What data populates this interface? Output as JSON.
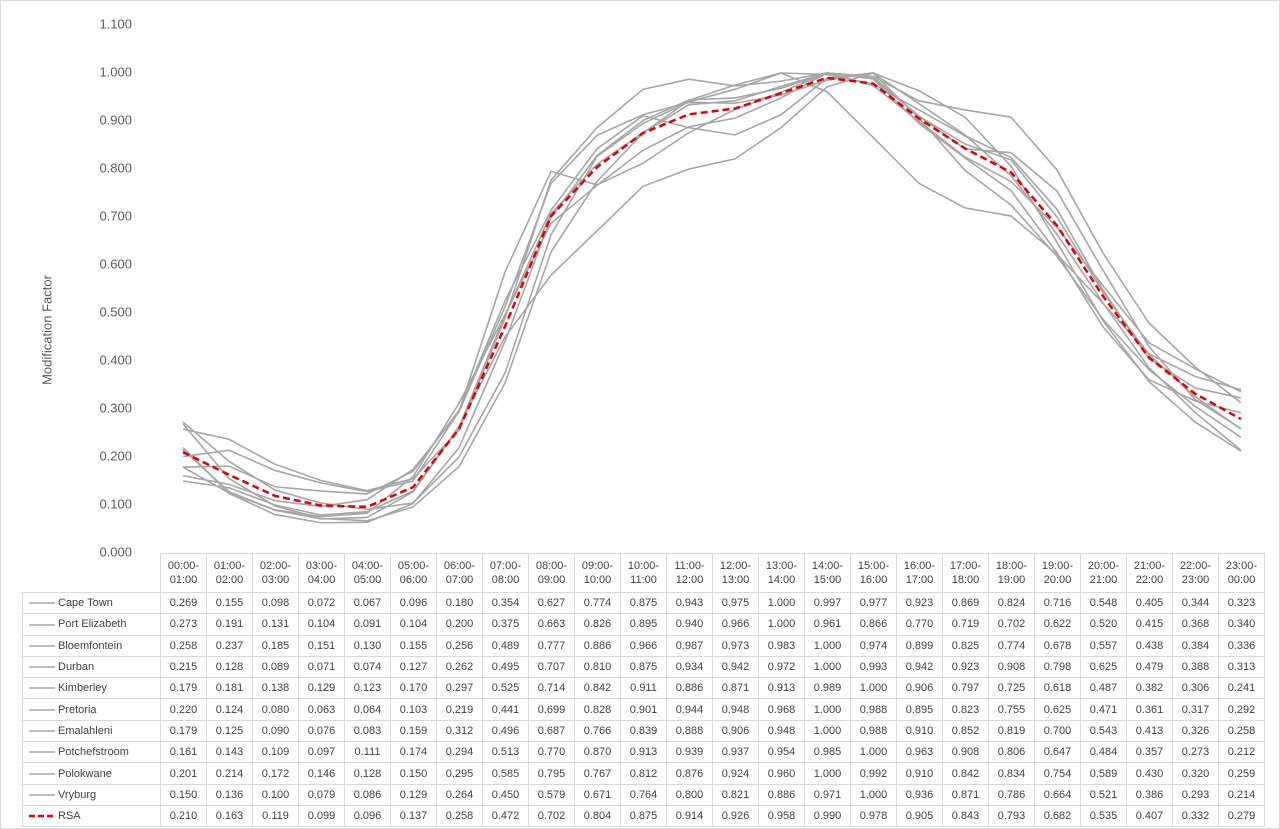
{
  "chart_data": {
    "type": "line",
    "y_label": "Modification Factor",
    "categories": [
      "00:00-01:00",
      "01:00-02:00",
      "02:00-03:00",
      "03:00-04:00",
      "04:00-05:00",
      "05:00-06:00",
      "06:00-07:00",
      "07:00-08:00",
      "08:00-09:00",
      "09:00-10:00",
      "10:00-11:00",
      "11:00-12:00",
      "12:00-13:00",
      "13:00-14:00",
      "14:00-15:00",
      "15:00-16:00",
      "16:00-17:00",
      "17:00-18:00",
      "18:00-19:00",
      "19:00-20:00",
      "20:00-21:00",
      "21:00-22:00",
      "22:00-23:00",
      "23:00-00:00"
    ],
    "ylim": [
      0,
      1.1
    ],
    "yticks": [
      {
        "value": 0,
        "label": "0.000"
      },
      {
        "value": 0.1,
        "label": "0.100"
      },
      {
        "value": 0.2,
        "label": "0.200"
      },
      {
        "value": 0.3,
        "label": "0.300"
      },
      {
        "value": 0.4,
        "label": "0.400"
      },
      {
        "value": 0.5,
        "label": "0.500"
      },
      {
        "value": 0.6,
        "label": "0.600"
      },
      {
        "value": 0.7,
        "label": "0.700"
      },
      {
        "value": 0.8,
        "label": "0.800"
      },
      {
        "value": 0.9,
        "label": "0.900"
      },
      {
        "value": 1,
        "label": "1.000"
      },
      {
        "value": 1.1,
        "label": "1.100"
      }
    ],
    "grid": false,
    "series": [
      {
        "name": "Cape Town",
        "color": "#a6a6a6",
        "dashed": false,
        "values": [
          0.269,
          0.155,
          0.098,
          0.072,
          0.067,
          0.096,
          0.18,
          0.354,
          0.627,
          0.774,
          0.875,
          0.943,
          0.975,
          1.0,
          0.997,
          0.977,
          0.923,
          0.869,
          0.824,
          0.716,
          0.548,
          0.405,
          0.344,
          0.323
        ],
        "value_labels": [
          "0.269",
          "0.155",
          "0.098",
          "0.072",
          "0.067",
          "0.096",
          "0.180",
          "0.354",
          "0.627",
          "0.774",
          "0.875",
          "0.943",
          "0.975",
          "1.000",
          "0.997",
          "0.977",
          "0.923",
          "0.869",
          "0.824",
          "0.716",
          "0.548",
          "0.405",
          "0.344",
          "0.323"
        ]
      },
      {
        "name": "Port Elizabeth",
        "color": "#a6a6a6",
        "dashed": false,
        "values": [
          0.273,
          0.191,
          0.131,
          0.104,
          0.091,
          0.104,
          0.2,
          0.375,
          0.663,
          0.826,
          0.895,
          0.94,
          0.966,
          1.0,
          0.961,
          0.866,
          0.77,
          0.719,
          0.702,
          0.622,
          0.52,
          0.415,
          0.368,
          0.34
        ],
        "value_labels": [
          "0.273",
          "0.191",
          "0.131",
          "0.104",
          "0.091",
          "0.104",
          "0.200",
          "0.375",
          "0.663",
          "0.826",
          "0.895",
          "0.940",
          "0.966",
          "1.000",
          "0.961",
          "0.866",
          "0.770",
          "0.719",
          "0.702",
          "0.622",
          "0.520",
          "0.415",
          "0.368",
          "0.340"
        ]
      },
      {
        "name": "Bloemfontein",
        "color": "#a6a6a6",
        "dashed": false,
        "values": [
          0.258,
          0.237,
          0.185,
          0.151,
          0.13,
          0.155,
          0.256,
          0.489,
          0.777,
          0.886,
          0.966,
          0.987,
          0.973,
          0.983,
          1.0,
          0.974,
          0.899,
          0.825,
          0.774,
          0.678,
          0.557,
          0.438,
          0.384,
          0.336
        ],
        "value_labels": [
          "0.258",
          "0.237",
          "0.185",
          "0.151",
          "0.130",
          "0.155",
          "0.256",
          "0.489",
          "0.777",
          "0.886",
          "0.966",
          "0.987",
          "0.973",
          "0.983",
          "1.000",
          "0.974",
          "0.899",
          "0.825",
          "0.774",
          "0.678",
          "0.557",
          "0.438",
          "0.384",
          "0.336"
        ]
      },
      {
        "name": "Durban",
        "color": "#a6a6a6",
        "dashed": false,
        "values": [
          0.215,
          0.128,
          0.089,
          0.071,
          0.074,
          0.127,
          0.262,
          0.495,
          0.707,
          0.81,
          0.875,
          0.934,
          0.942,
          0.972,
          1.0,
          0.993,
          0.942,
          0.923,
          0.908,
          0.798,
          0.625,
          0.479,
          0.388,
          0.313
        ],
        "value_labels": [
          "0.215",
          "0.128",
          "0.089",
          "0.071",
          "0.074",
          "0.127",
          "0.262",
          "0.495",
          "0.707",
          "0.810",
          "0.875",
          "0.934",
          "0.942",
          "0.972",
          "1.000",
          "0.993",
          "0.942",
          "0.923",
          "0.908",
          "0.798",
          "0.625",
          "0.479",
          "0.388",
          "0.313"
        ]
      },
      {
        "name": "Kimberley",
        "color": "#a6a6a6",
        "dashed": false,
        "values": [
          0.179,
          0.181,
          0.138,
          0.129,
          0.123,
          0.17,
          0.297,
          0.525,
          0.714,
          0.842,
          0.911,
          0.886,
          0.871,
          0.913,
          0.989,
          1.0,
          0.906,
          0.797,
          0.725,
          0.618,
          0.487,
          0.382,
          0.306,
          0.241
        ],
        "value_labels": [
          "0.179",
          "0.181",
          "0.138",
          "0.129",
          "0.123",
          "0.170",
          "0.297",
          "0.525",
          "0.714",
          "0.842",
          "0.911",
          "0.886",
          "0.871",
          "0.913",
          "0.989",
          "1.000",
          "0.906",
          "0.797",
          "0.725",
          "0.618",
          "0.487",
          "0.382",
          "0.306",
          "0.241"
        ]
      },
      {
        "name": "Pretoria",
        "color": "#a6a6a6",
        "dashed": false,
        "values": [
          0.22,
          0.124,
          0.08,
          0.063,
          0.064,
          0.103,
          0.219,
          0.441,
          0.699,
          0.828,
          0.901,
          0.944,
          0.948,
          0.968,
          1.0,
          0.988,
          0.895,
          0.823,
          0.755,
          0.625,
          0.471,
          0.361,
          0.317,
          0.292
        ],
        "value_labels": [
          "0.220",
          "0.124",
          "0.080",
          "0.063",
          "0.064",
          "0.103",
          "0.219",
          "0.441",
          "0.699",
          "0.828",
          "0.901",
          "0.944",
          "0.948",
          "0.968",
          "1.000",
          "0.988",
          "0.895",
          "0.823",
          "0.755",
          "0.625",
          "0.471",
          "0.361",
          "0.317",
          "0.292"
        ]
      },
      {
        "name": "Emalahleni",
        "color": "#a6a6a6",
        "dashed": false,
        "values": [
          0.179,
          0.125,
          0.09,
          0.076,
          0.083,
          0.159,
          0.312,
          0.496,
          0.687,
          0.766,
          0.839,
          0.888,
          0.906,
          0.948,
          1.0,
          0.988,
          0.91,
          0.852,
          0.819,
          0.7,
          0.543,
          0.413,
          0.326,
          0.258
        ],
        "value_labels": [
          "0.179",
          "0.125",
          "0.090",
          "0.076",
          "0.083",
          "0.159",
          "0.312",
          "0.496",
          "0.687",
          "0.766",
          "0.839",
          "0.888",
          "0.906",
          "0.948",
          "1.000",
          "0.988",
          "0.910",
          "0.852",
          "0.819",
          "0.700",
          "0.543",
          "0.413",
          "0.326",
          "0.258"
        ]
      },
      {
        "name": "Potchefstroom",
        "color": "#a6a6a6",
        "dashed": false,
        "values": [
          0.161,
          0.143,
          0.109,
          0.097,
          0.111,
          0.174,
          0.294,
          0.513,
          0.77,
          0.87,
          0.913,
          0.939,
          0.937,
          0.954,
          0.985,
          1.0,
          0.963,
          0.908,
          0.806,
          0.647,
          0.484,
          0.357,
          0.273,
          0.212
        ],
        "value_labels": [
          "0.161",
          "0.143",
          "0.109",
          "0.097",
          "0.111",
          "0.174",
          "0.294",
          "0.513",
          "0.770",
          "0.870",
          "0.913",
          "0.939",
          "0.937",
          "0.954",
          "0.985",
          "1.000",
          "0.963",
          "0.908",
          "0.806",
          "0.647",
          "0.484",
          "0.357",
          "0.273",
          "0.212"
        ]
      },
      {
        "name": "Polokwane",
        "color": "#a6a6a6",
        "dashed": false,
        "values": [
          0.201,
          0.214,
          0.172,
          0.146,
          0.128,
          0.15,
          0.295,
          0.585,
          0.795,
          0.767,
          0.812,
          0.876,
          0.924,
          0.96,
          1.0,
          0.992,
          0.91,
          0.842,
          0.834,
          0.754,
          0.589,
          0.43,
          0.32,
          0.259
        ],
        "value_labels": [
          "0.201",
          "0.214",
          "0.172",
          "0.146",
          "0.128",
          "0.150",
          "0.295",
          "0.585",
          "0.795",
          "0.767",
          "0.812",
          "0.876",
          "0.924",
          "0.960",
          "1.000",
          "0.992",
          "0.910",
          "0.842",
          "0.834",
          "0.754",
          "0.589",
          "0.430",
          "0.320",
          "0.259"
        ]
      },
      {
        "name": "Vryburg",
        "color": "#a6a6a6",
        "dashed": false,
        "values": [
          0.15,
          0.136,
          0.1,
          0.079,
          0.086,
          0.129,
          0.264,
          0.45,
          0.579,
          0.671,
          0.764,
          0.8,
          0.821,
          0.886,
          0.971,
          1.0,
          0.936,
          0.871,
          0.786,
          0.664,
          0.521,
          0.386,
          0.293,
          0.214
        ],
        "value_labels": [
          "0.150",
          "0.136",
          "0.100",
          "0.079",
          "0.086",
          "0.129",
          "0.264",
          "0.450",
          "0.579",
          "0.671",
          "0.764",
          "0.800",
          "0.821",
          "0.886",
          "0.971",
          "1.000",
          "0.936",
          "0.871",
          "0.786",
          "0.664",
          "0.521",
          "0.386",
          "0.293",
          "0.214"
        ]
      },
      {
        "name": "RSA",
        "color": "#e00000",
        "dashed": true,
        "values": [
          0.21,
          0.163,
          0.119,
          0.099,
          0.096,
          0.137,
          0.258,
          0.472,
          0.702,
          0.804,
          0.875,
          0.914,
          0.926,
          0.958,
          0.99,
          0.978,
          0.905,
          0.843,
          0.793,
          0.682,
          0.535,
          0.407,
          0.332,
          0.279
        ],
        "value_labels": [
          "0.210",
          "0.163",
          "0.119",
          "0.099",
          "0.096",
          "0.137",
          "0.258",
          "0.472",
          "0.702",
          "0.804",
          "0.875",
          "0.914",
          "0.926",
          "0.958",
          "0.990",
          "0.978",
          "0.905",
          "0.843",
          "0.793",
          "0.682",
          "0.535",
          "0.407",
          "0.332",
          "0.279"
        ]
      }
    ]
  }
}
